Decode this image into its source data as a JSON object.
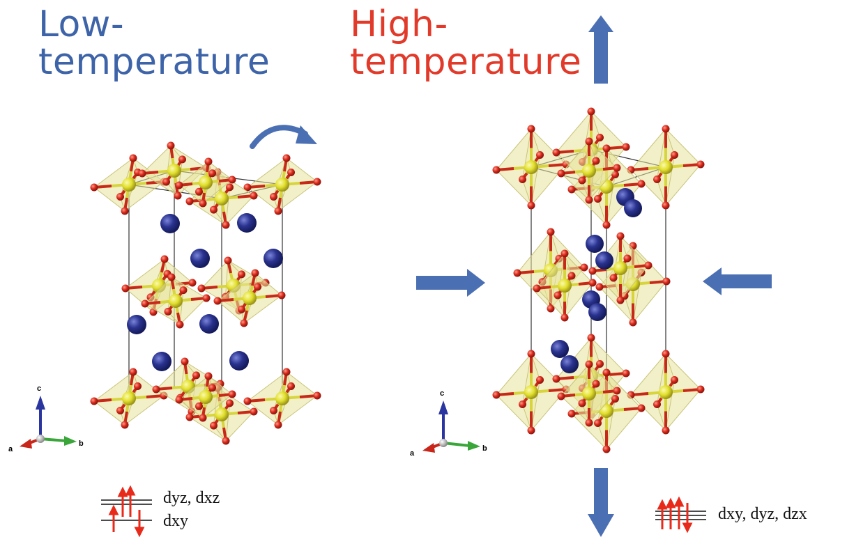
{
  "titles": {
    "low_line1": "Low-",
    "low_line2": "temperature",
    "high_line1": "High-",
    "high_line2": "temperature"
  },
  "axes": {
    "c": "c",
    "a": "a",
    "b": "b"
  },
  "orbitals": {
    "low_upper": "dyz, dxz",
    "low_lower": "dxy",
    "high": "dxy, dyz, dzx"
  },
  "colors": {
    "low_title": "#3d63a8",
    "high_title": "#e23a2a",
    "arrow": "#4a6fb3",
    "octahedron": "#e5e2a0",
    "metal_atom": "#e4e23a",
    "oxygen_atom": "#d42a1c",
    "cation_atom": "#27318e",
    "spin_arrow": "#e82a1a"
  }
}
